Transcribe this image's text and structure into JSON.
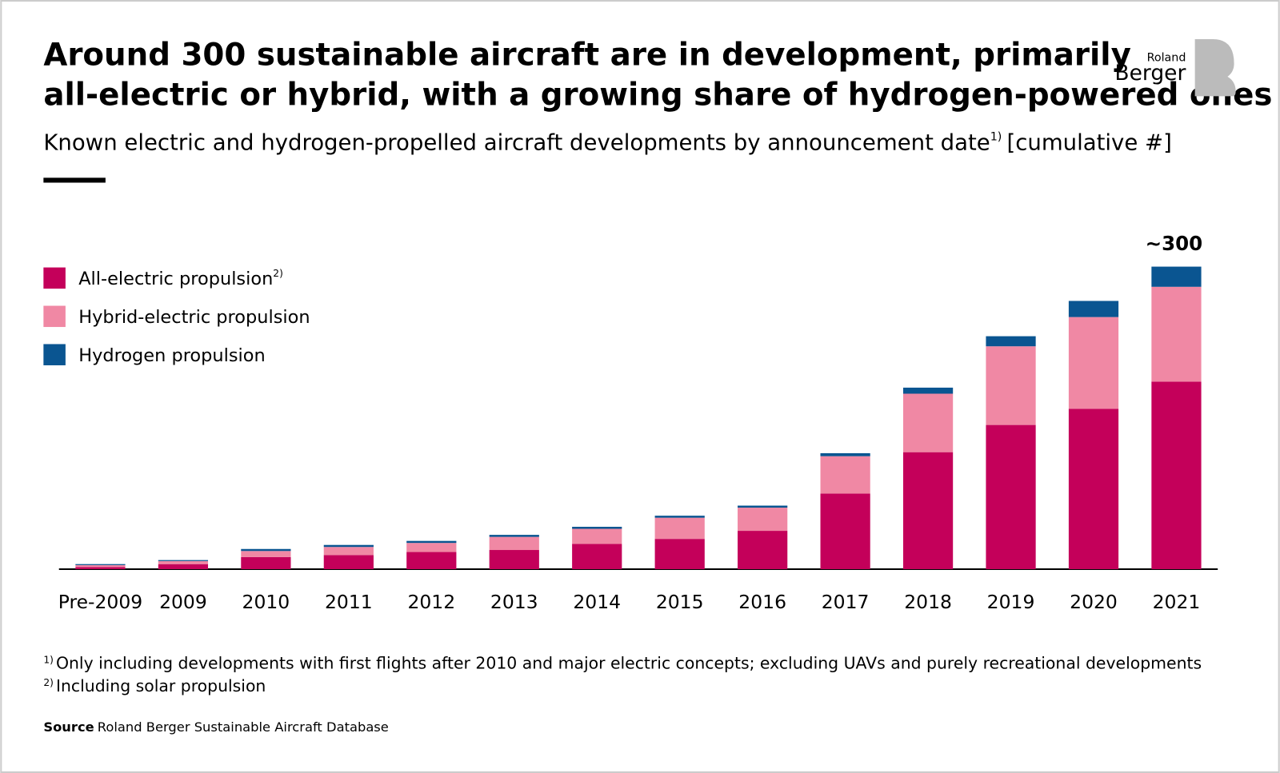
{
  "chart_data": {
    "type": "stacked-bar",
    "title": [
      "Around 300 sustainable aircraft are in development, primarily",
      "all-electric or hybrid, with a growing share of hydrogen-powered ones"
    ],
    "subtitle": {
      "text": "Known electric and hydrogen-propelled aircraft developments by announcement date",
      "note": "1)",
      "unit": "[cumulative #]"
    },
    "annotation": "~300",
    "categories": [
      "Pre-2009",
      "2009",
      "2010",
      "2011",
      "2012",
      "2013",
      "2014",
      "2015",
      "2016",
      "2017",
      "2018",
      "2019",
      "2020",
      "2021"
    ],
    "series": [
      {
        "name": "All-electric propulsion",
        "note": "2)",
        "color": "#c4005a",
        "values": [
          2,
          5,
          12,
          14,
          17,
          19,
          25,
          30,
          38,
          75,
          116,
          143,
          159,
          186
        ]
      },
      {
        "name": "Hybrid-electric propulsion",
        "color": "#f088a4",
        "values": [
          2,
          3,
          6,
          8,
          9,
          13,
          15,
          21,
          23,
          37,
          58,
          78,
          91,
          94
        ]
      },
      {
        "name": "Hydrogen propulsion",
        "color": "#0a5591",
        "values": [
          1,
          1,
          2,
          2,
          2,
          2,
          2,
          2,
          2,
          3,
          6,
          10,
          16,
          20
        ]
      }
    ],
    "footnotes": [
      {
        "marker": "1)",
        "text": "Only including developments with first flights after 2010 and major electric concepts; excluding UAVs and purely recreational developments"
      },
      {
        "marker": "2)",
        "text": "Including solar propulsion"
      }
    ],
    "source": {
      "label": "Source",
      "text": "Roland Berger Sustainable Aircraft Database"
    },
    "logo": {
      "small": "Roland",
      "large": "Berger"
    }
  }
}
